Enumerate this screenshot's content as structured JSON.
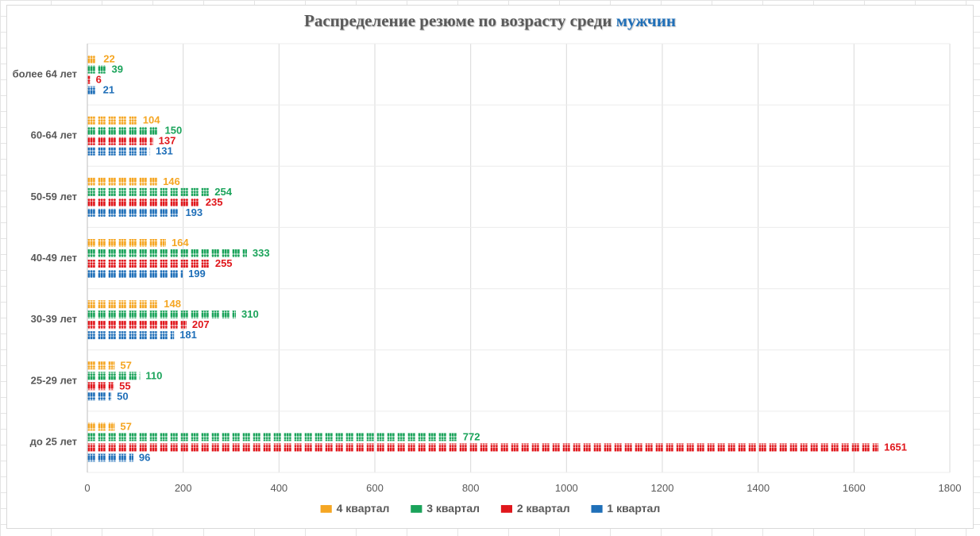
{
  "chart_data": {
    "type": "bar",
    "orientation": "horizontal",
    "title": "Распределение резюме по возрасту среди мужчин",
    "title_plain": "Распределение резюме по возрасту среди",
    "title_accent": "мужчин",
    "categories": [
      "более 64 лет",
      "60-64 лет",
      "50-59 лет",
      "40-49 лет",
      "30-39 лет",
      "25-29 лет",
      "до 25 лет"
    ],
    "series": [
      {
        "name": "4 квартал",
        "color": "#f5a623",
        "values": [
          22,
          104,
          146,
          164,
          148,
          57,
          57
        ]
      },
      {
        "name": "3 квартал",
        "color": "#1aa35a",
        "values": [
          39,
          150,
          254,
          333,
          310,
          110,
          772
        ]
      },
      {
        "name": "2 квартал",
        "color": "#e0161b",
        "values": [
          6,
          137,
          235,
          255,
          207,
          55,
          1651
        ]
      },
      {
        "name": "1 квартал",
        "color": "#1f6fb8",
        "values": [
          21,
          131,
          193,
          199,
          181,
          50,
          96
        ]
      }
    ],
    "xlim": [
      0,
      1800
    ],
    "xticks": [
      0,
      200,
      400,
      600,
      800,
      1000,
      1200,
      1400,
      1600,
      1800
    ],
    "grid": true,
    "legend_position": "bottom",
    "marker": "people-icon"
  }
}
